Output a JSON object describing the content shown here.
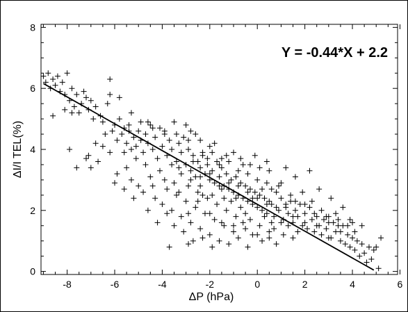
{
  "chart_data": {
    "type": "scatter",
    "title": "",
    "xlabel": "ΔP (hPa)",
    "ylabel": "ΔI/I TEL(%)",
    "xlim": [
      -9.1,
      5.9
    ],
    "ylim": [
      -0.1,
      8.1
    ],
    "x_ticks": [
      -8,
      -6,
      -4,
      -2,
      0,
      2,
      4,
      6
    ],
    "x_tick_labels": [
      "-8",
      "-6",
      "-4",
      "-2",
      "0",
      "2",
      "4",
      "6"
    ],
    "y_ticks": [
      0,
      2,
      4,
      6,
      8
    ],
    "y_tick_labels": [
      "0",
      "2",
      "4",
      "6",
      "8"
    ],
    "annotation": "Y = -0.44*X + 2.2",
    "fit_line": {
      "slope": -0.44,
      "intercept": 2.2,
      "x_range": [
        -9.0,
        4.9
      ]
    },
    "grid": false,
    "marker": "+",
    "points": [
      [
        -9.0,
        6.4
      ],
      [
        -8.9,
        6.2
      ],
      [
        -8.8,
        6.5
      ],
      [
        -8.7,
        6.0
      ],
      [
        -8.6,
        6.3
      ],
      [
        -8.5,
        6.1
      ],
      [
        -8.4,
        6.4
      ],
      [
        -8.3,
        5.9
      ],
      [
        -8.2,
        6.2
      ],
      [
        -8.1,
        5.8
      ],
      [
        -8.0,
        6.5
      ],
      [
        -7.9,
        5.6
      ],
      [
        -7.8,
        6.0
      ],
      [
        -7.7,
        5.4
      ],
      [
        -7.6,
        5.8
      ],
      [
        -7.5,
        5.2
      ],
      [
        -7.4,
        5.5
      ],
      [
        -7.3,
        5.9
      ],
      [
        -7.2,
        5.7
      ],
      [
        -7.1,
        5.3
      ],
      [
        -7.0,
        5.6
      ],
      [
        -8.6,
        5.1
      ],
      [
        -8.1,
        5.3
      ],
      [
        -7.8,
        5.2
      ],
      [
        -6.9,
        5.0
      ],
      [
        -6.8,
        5.4
      ],
      [
        -6.6,
        5.1
      ],
      [
        -6.5,
        4.9
      ],
      [
        -6.3,
        5.5
      ],
      [
        -6.2,
        5.8
      ],
      [
        -6.1,
        4.6
      ],
      [
        -6.0,
        4.8
      ],
      [
        -5.9,
        4.3
      ],
      [
        -5.8,
        5.0
      ],
      [
        -5.7,
        4.5
      ],
      [
        -5.6,
        4.7
      ],
      [
        -5.5,
        4.2
      ],
      [
        -5.4,
        4.6
      ],
      [
        -5.3,
        4.0
      ],
      [
        -5.2,
        4.4
      ],
      [
        -5.1,
        4.1
      ],
      [
        -5.0,
        4.6
      ],
      [
        -4.9,
        4.3
      ],
      [
        -4.8,
        3.9
      ],
      [
        -4.7,
        4.5
      ],
      [
        -4.6,
        4.2
      ],
      [
        -4.5,
        4.8
      ],
      [
        -4.4,
        4.0
      ],
      [
        -4.3,
        4.4
      ],
      [
        -4.2,
        3.7
      ],
      [
        -4.1,
        4.7
      ],
      [
        -4.0,
        4.1
      ],
      [
        -3.9,
        4.5
      ],
      [
        -3.8,
        3.8
      ],
      [
        -3.7,
        4.3
      ],
      [
        -3.6,
        4.0
      ],
      [
        -3.5,
        4.9
      ],
      [
        -3.4,
        3.6
      ],
      [
        -3.3,
        4.2
      ],
      [
        -3.2,
        3.9
      ],
      [
        -3.1,
        4.4
      ],
      [
        -3.0,
        3.5
      ],
      [
        -2.9,
        4.0
      ],
      [
        -2.8,
        3.3
      ],
      [
        -2.7,
        3.8
      ],
      [
        -2.6,
        3.1
      ],
      [
        -2.5,
        3.6
      ],
      [
        -2.4,
        3.4
      ],
      [
        -2.3,
        3.9
      ],
      [
        -2.2,
        3.2
      ],
      [
        -2.1,
        3.5
      ],
      [
        -2.0,
        3.0
      ],
      [
        -1.9,
        3.3
      ],
      [
        -1.8,
        2.9
      ],
      [
        -1.7,
        3.6
      ],
      [
        -1.6,
        3.1
      ],
      [
        -1.5,
        3.4
      ],
      [
        -1.4,
        2.8
      ],
      [
        -1.3,
        3.2
      ],
      [
        -1.2,
        2.7
      ],
      [
        -1.1,
        3.0
      ],
      [
        -1.0,
        2.6
      ],
      [
        -0.9,
        3.1
      ],
      [
        -0.8,
        2.5
      ],
      [
        -0.7,
        2.9
      ],
      [
        -0.6,
        2.4
      ],
      [
        -0.5,
        2.8
      ],
      [
        -0.4,
        2.3
      ],
      [
        -0.3,
        2.7
      ],
      [
        -0.2,
        2.2
      ],
      [
        -0.1,
        2.6
      ],
      [
        0.0,
        2.1
      ],
      [
        0.1,
        2.5
      ],
      [
        0.2,
        2.0
      ],
      [
        0.3,
        2.4
      ],
      [
        0.4,
        1.9
      ],
      [
        0.5,
        2.3
      ],
      [
        0.6,
        2.2
      ],
      [
        0.7,
        1.8
      ],
      [
        0.8,
        2.6
      ],
      [
        0.9,
        2.0
      ],
      [
        1.0,
        2.4
      ],
      [
        1.1,
        1.7
      ],
      [
        1.2,
        2.1
      ],
      [
        1.3,
        1.9
      ],
      [
        1.4,
        2.3
      ],
      [
        1.5,
        1.6
      ],
      [
        1.6,
        2.0
      ],
      [
        1.7,
        1.8
      ],
      [
        1.8,
        2.2
      ],
      [
        1.9,
        1.5
      ],
      [
        2.0,
        1.9
      ],
      [
        2.1,
        1.4
      ],
      [
        2.2,
        2.1
      ],
      [
        2.3,
        1.7
      ],
      [
        2.4,
        1.3
      ],
      [
        2.5,
        1.8
      ],
      [
        2.6,
        1.5
      ],
      [
        2.7,
        1.2
      ],
      [
        2.8,
        1.7
      ],
      [
        2.9,
        1.4
      ],
      [
        3.0,
        1.8
      ],
      [
        3.1,
        1.1
      ],
      [
        3.2,
        1.6
      ],
      [
        3.3,
        1.3
      ],
      [
        3.4,
        1.7
      ],
      [
        3.5,
        1.0
      ],
      [
        3.6,
        1.5
      ],
      [
        3.7,
        0.9
      ],
      [
        3.8,
        1.2
      ],
      [
        3.9,
        0.8
      ],
      [
        4.0,
        1.1
      ],
      [
        4.1,
        0.7
      ],
      [
        4.2,
        1.0
      ],
      [
        4.3,
        0.5
      ],
      [
        4.5,
        0.6
      ],
      [
        4.6,
        0.3
      ],
      [
        4.7,
        0.8
      ],
      [
        4.8,
        0.4
      ],
      [
        4.9,
        0.7
      ],
      [
        5.0,
        0.8
      ],
      [
        5.1,
        0.1
      ],
      [
        5.2,
        1.1
      ],
      [
        4.4,
        0.9
      ],
      [
        -7.6,
        3.4
      ],
      [
        -7.9,
        4.0
      ],
      [
        -7.1,
        3.8
      ],
      [
        -7.0,
        3.4
      ],
      [
        -6.5,
        4.1
      ],
      [
        -6.2,
        3.9
      ],
      [
        -5.9,
        3.2
      ],
      [
        -5.5,
        3.4
      ],
      [
        -5.3,
        3.0
      ],
      [
        -5.0,
        2.8
      ],
      [
        -4.8,
        2.6
      ],
      [
        -4.5,
        3.1
      ],
      [
        -4.3,
        2.4
      ],
      [
        -4.0,
        2.2
      ],
      [
        -3.8,
        2.7
      ],
      [
        -3.6,
        2.0
      ],
      [
        -3.4,
        2.5
      ],
      [
        -3.2,
        1.8
      ],
      [
        -3.0,
        2.3
      ],
      [
        -2.8,
        1.6
      ],
      [
        -2.6,
        2.1
      ],
      [
        -2.4,
        1.4
      ],
      [
        -2.2,
        1.9
      ],
      [
        -2.0,
        1.2
      ],
      [
        -1.8,
        1.7
      ],
      [
        -1.6,
        1.0
      ],
      [
        -1.4,
        1.5
      ],
      [
        -1.2,
        0.9
      ],
      [
        -1.0,
        1.3
      ],
      [
        -0.8,
        1.1
      ],
      [
        -0.6,
        1.6
      ],
      [
        -0.4,
        0.8
      ],
      [
        -0.2,
        1.2
      ],
      [
        0.2,
        1.0
      ],
      [
        0.5,
        1.3
      ],
      [
        0.8,
        0.9
      ],
      [
        -3.7,
        0.8
      ],
      [
        -2.9,
        0.9
      ],
      [
        -2.3,
        1.1
      ],
      [
        -1.9,
        0.8
      ],
      [
        -3.1,
        1.3
      ],
      [
        -2.7,
        1.0
      ],
      [
        -2.5,
        2.6
      ],
      [
        -2.1,
        2.4
      ],
      [
        -1.7,
        2.2
      ],
      [
        -1.3,
        2.0
      ],
      [
        -0.9,
        1.8
      ],
      [
        -0.5,
        1.9
      ],
      [
        -3.5,
        2.9
      ],
      [
        -3.3,
        2.6
      ],
      [
        -2.9,
        2.8
      ],
      [
        -2.3,
        2.5
      ],
      [
        -1.5,
        2.7
      ],
      [
        -1.1,
        2.3
      ],
      [
        -0.7,
        2.1
      ],
      [
        -0.3,
        1.7
      ],
      [
        0.1,
        1.5
      ],
      [
        0.3,
        1.8
      ],
      [
        0.7,
        1.4
      ],
      [
        1.1,
        1.2
      ],
      [
        1.3,
        1.5
      ],
      [
        1.7,
        1.3
      ],
      [
        2.2,
        3.3
      ],
      [
        2.6,
        2.7
      ],
      [
        3.1,
        2.4
      ],
      [
        3.6,
        2.1
      ],
      [
        1.6,
        3.1
      ],
      [
        1.2,
        3.4
      ],
      [
        0.9,
        2.8
      ],
      [
        0.4,
        3.6
      ],
      [
        -0.1,
        3.8
      ],
      [
        -0.6,
        3.5
      ],
      [
        -1.0,
        3.9
      ],
      [
        -1.5,
        3.7
      ],
      [
        -2.0,
        4.1
      ],
      [
        -2.4,
        4.3
      ],
      [
        -2.8,
        4.6
      ],
      [
        -3.0,
        4.8
      ],
      [
        -1.8,
        4.2
      ],
      [
        -2.6,
        4.5
      ],
      [
        -4.6,
        4.9
      ],
      [
        -5.3,
        5.2
      ],
      [
        -5.8,
        5.7
      ],
      [
        -6.2,
        6.3
      ],
      [
        -6.4,
        4.5
      ],
      [
        -6.8,
        4.2
      ],
      [
        -7.2,
        3.7
      ],
      [
        -6.7,
        3.6
      ],
      [
        -5.6,
        3.9
      ],
      [
        -5.1,
        3.7
      ],
      [
        -4.7,
        3.5
      ],
      [
        -4.1,
        3.3
      ],
      [
        -3.9,
        3.0
      ],
      [
        -3.3,
        3.4
      ],
      [
        -2.7,
        3.6
      ],
      [
        -2.1,
        3.7
      ],
      [
        -1.6,
        3.5
      ],
      [
        -1.2,
        3.6
      ],
      [
        -0.8,
        3.3
      ],
      [
        -0.4,
        3.2
      ],
      [
        0.0,
        3.0
      ],
      [
        0.4,
        2.9
      ],
      [
        0.6,
        2.7
      ],
      [
        1.0,
        2.9
      ],
      [
        1.4,
        2.5
      ],
      [
        1.9,
        2.6
      ],
      [
        2.3,
        2.3
      ],
      [
        2.7,
        2.0
      ],
      [
        3.0,
        1.6
      ],
      [
        3.3,
        1.9
      ],
      [
        3.8,
        1.5
      ],
      [
        4.1,
        1.3
      ],
      [
        4.4,
        1.5
      ],
      [
        -3.8,
        1.9
      ],
      [
        -4.2,
        1.6
      ],
      [
        -4.6,
        2.0
      ],
      [
        -5.2,
        2.4
      ],
      [
        -5.6,
        2.7
      ],
      [
        -6.0,
        2.9
      ],
      [
        -4.4,
        2.8
      ],
      [
        -3.5,
        1.5
      ],
      [
        -2.9,
        1.9
      ],
      [
        -2.4,
        2.8
      ],
      [
        -1.9,
        2.5
      ],
      [
        -1.4,
        2.4
      ],
      [
        -0.9,
        2.4
      ],
      [
        -0.2,
        2.4
      ],
      [
        0.2,
        2.7
      ],
      [
        0.6,
        1.6
      ],
      [
        1.5,
        1.8
      ],
      [
        2.0,
        1.6
      ],
      [
        2.4,
        1.9
      ],
      [
        2.9,
        1.8
      ],
      [
        3.4,
        1.5
      ],
      [
        3.9,
        1.7
      ],
      [
        -3.6,
        3.5
      ],
      [
        -3.2,
        3.2
      ],
      [
        -2.8,
        3.0
      ],
      [
        -2.4,
        3.1
      ],
      [
        -2.0,
        3.2
      ],
      [
        -1.6,
        2.8
      ],
      [
        -1.2,
        2.9
      ],
      [
        -0.8,
        2.8
      ],
      [
        -0.4,
        2.6
      ],
      [
        0.0,
        2.4
      ],
      [
        0.4,
        2.2
      ],
      [
        0.8,
        2.1
      ],
      [
        1.2,
        2.2
      ],
      [
        1.6,
        2.3
      ],
      [
        2.0,
        2.2
      ],
      [
        -5.4,
        4.8
      ],
      [
        -4.9,
        4.9
      ],
      [
        -4.4,
        4.7
      ],
      [
        -3.9,
        4.6
      ],
      [
        -3.4,
        4.5
      ],
      [
        -2.9,
        4.3
      ],
      [
        -2.3,
        3.8
      ],
      [
        -1.9,
        3.9
      ],
      [
        -1.3,
        3.8
      ],
      [
        -0.7,
        3.7
      ],
      [
        -0.3,
        3.5
      ],
      [
        0.1,
        3.4
      ],
      [
        0.5,
        3.3
      ],
      [
        -2.5,
        2.3
      ],
      [
        -2.0,
        1.9
      ],
      [
        -1.5,
        1.6
      ],
      [
        -1.0,
        1.5
      ],
      [
        -0.5,
        1.4
      ],
      [
        0.0,
        1.2
      ],
      [
        0.5,
        1.1
      ],
      [
        1.0,
        1.6
      ],
      [
        1.5,
        1.1
      ],
      [
        2.5,
        1.5
      ],
      [
        3.0,
        1.1
      ],
      [
        3.5,
        1.3
      ],
      [
        4.0,
        1.6
      ]
    ]
  }
}
